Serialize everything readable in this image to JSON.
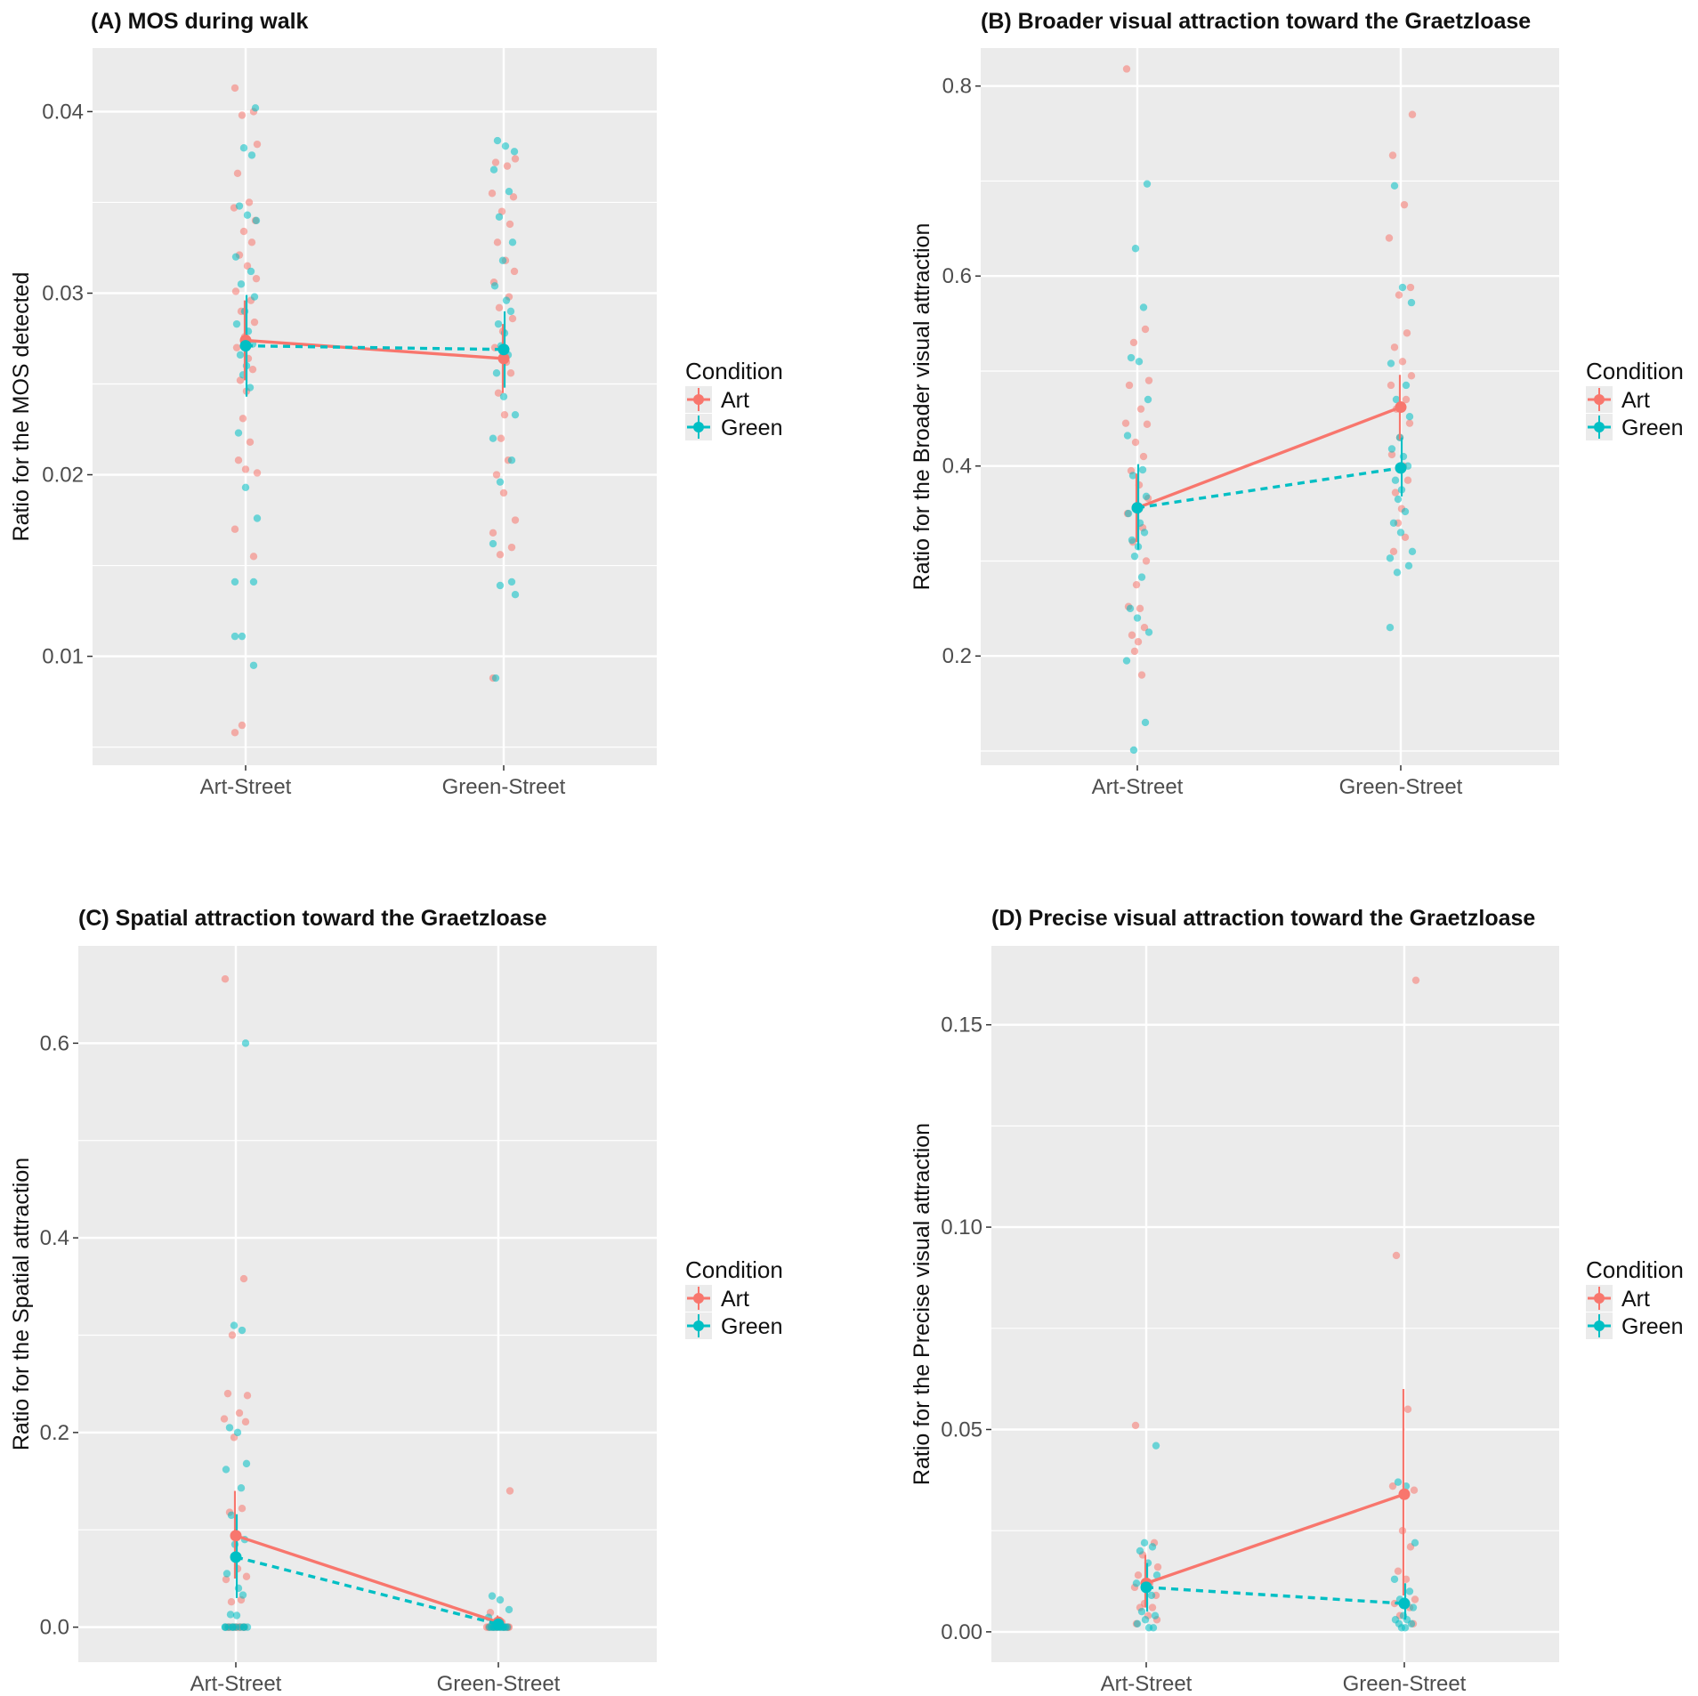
{
  "chart_data": [
    {
      "type": "scatter",
      "title": "(A) MOS during walk",
      "xlabel": "",
      "ylabel": "Ratio for the MOS detected",
      "categories": [
        "Art-Street",
        "Green-Street"
      ],
      "yticks": [
        "0.01",
        "0.02",
        "0.03",
        "0.04"
      ],
      "ylim": [
        0.004,
        0.0435
      ],
      "legend_title": "Condition",
      "series": [
        {
          "name": "Art",
          "color": "#F8766D",
          "line": "solid",
          "means": [
            0.0274,
            0.0264
          ],
          "error": [
            [
              0.0252,
              0.0296
            ],
            [
              0.0245,
              0.0283
            ]
          ],
          "points": [
            [
              0.0413,
              0.04,
              0.0398,
              0.0382,
              0.0366,
              0.035,
              0.0347,
              0.034,
              0.0334,
              0.0328,
              0.0321,
              0.0315,
              0.0308,
              0.0301,
              0.0296,
              0.029,
              0.0284,
              0.0276,
              0.027,
              0.0264,
              0.0258,
              0.0252,
              0.0246,
              0.0231,
              0.0218,
              0.0208,
              0.0203,
              0.0201,
              0.017,
              0.0155,
              0.0062,
              0.0058
            ],
            [
              0.0374,
              0.0372,
              0.037,
              0.0355,
              0.0353,
              0.0345,
              0.0338,
              0.0328,
              0.0318,
              0.0312,
              0.0306,
              0.0298,
              0.0292,
              0.0286,
              0.0279,
              0.027,
              0.0262,
              0.0256,
              0.0245,
              0.0233,
              0.022,
              0.0208,
              0.02,
              0.019,
              0.0175,
              0.0168,
              0.016,
              0.0156,
              0.0088
            ]
          ]
        },
        {
          "name": "Green",
          "color": "#00BFC4",
          "line": "dashed",
          "means": [
            0.0271,
            0.0269
          ],
          "error": [
            [
              0.0243,
              0.0299
            ],
            [
              0.0248,
              0.029
            ]
          ],
          "points": [
            [
              0.0402,
              0.038,
              0.0376,
              0.0348,
              0.0343,
              0.034,
              0.032,
              0.0312,
              0.0305,
              0.0298,
              0.029,
              0.0283,
              0.0279,
              0.0272,
              0.0266,
              0.026,
              0.0255,
              0.0248,
              0.0223,
              0.0193,
              0.0176,
              0.0141,
              0.0141,
              0.0111,
              0.0111,
              0.0095
            ],
            [
              0.0384,
              0.0381,
              0.0378,
              0.0368,
              0.0356,
              0.0342,
              0.0328,
              0.0318,
              0.0304,
              0.0296,
              0.029,
              0.0283,
              0.0278,
              0.0271,
              0.0266,
              0.0256,
              0.0243,
              0.0233,
              0.022,
              0.0208,
              0.0196,
              0.0162,
              0.0141,
              0.0139,
              0.0134,
              0.0088
            ]
          ]
        }
      ]
    },
    {
      "type": "scatter",
      "title": "(B) Broader visual attraction toward the Graetzloase",
      "xlabel": "",
      "ylabel": "Ratio for the Broader visual attraction",
      "categories": [
        "Art-Street",
        "Green-Street"
      ],
      "yticks": [
        "0.2",
        "0.4",
        "0.6",
        "0.8"
      ],
      "ylim": [
        0.085,
        0.84
      ],
      "legend_title": "Condition",
      "series": [
        {
          "name": "Art",
          "color": "#F8766D",
          "line": "solid",
          "means": [
            0.356,
            0.462
          ],
          "error": [
            [
              0.32,
              0.392
            ],
            [
              0.428,
              0.496
            ]
          ],
          "points": [
            [
              0.818,
              0.544,
              0.53,
              0.49,
              0.485,
              0.46,
              0.445,
              0.444,
              0.425,
              0.41,
              0.395,
              0.38,
              0.366,
              0.35,
              0.335,
              0.32,
              0.3,
              0.275,
              0.252,
              0.25,
              0.23,
              0.222,
              0.215,
              0.205,
              0.18
            ],
            [
              0.77,
              0.727,
              0.675,
              0.64,
              0.588,
              0.58,
              0.54,
              0.525,
              0.51,
              0.495,
              0.485,
              0.47,
              0.46,
              0.445,
              0.43,
              0.412,
              0.4,
              0.385,
              0.372,
              0.355,
              0.34,
              0.325,
              0.31
            ]
          ]
        },
        {
          "name": "Green",
          "color": "#00BFC4",
          "line": "dashed",
          "means": [
            0.356,
            0.398
          ],
          "error": [
            [
              0.312,
              0.402
            ],
            [
              0.368,
              0.43
            ]
          ],
          "points": [
            [
              0.697,
              0.629,
              0.567,
              0.514,
              0.51,
              0.47,
              0.432,
              0.396,
              0.39,
              0.368,
              0.358,
              0.35,
              0.34,
              0.33,
              0.322,
              0.315,
              0.305,
              0.283,
              0.25,
              0.24,
              0.225,
              0.195,
              0.13,
              0.101
            ],
            [
              0.695,
              0.588,
              0.572,
              0.508,
              0.485,
              0.47,
              0.452,
              0.43,
              0.418,
              0.41,
              0.4,
              0.385,
              0.375,
              0.365,
              0.352,
              0.34,
              0.33,
              0.31,
              0.303,
              0.295,
              0.288,
              0.23
            ]
          ]
        }
      ]
    },
    {
      "type": "scatter",
      "title": "(C) Spatial attraction toward the Graetzloase",
      "xlabel": "",
      "ylabel": "Ratio for the Spatial attraction",
      "categories": [
        "Art-Street",
        "Green-Street"
      ],
      "yticks": [
        "0.0",
        "0.2",
        "0.4",
        "0.6"
      ],
      "ylim": [
        -0.036,
        0.7
      ],
      "legend_title": "Condition",
      "series": [
        {
          "name": "Art",
          "color": "#F8766D",
          "line": "solid",
          "means": [
            0.094,
            0.005
          ],
          "error": [
            [
              0.05,
              0.14
            ],
            [
              0.0,
              0.012
            ]
          ],
          "points": [
            [
              0.666,
              0.358,
              0.3,
              0.238,
              0.24,
              0.22,
              0.214,
              0.211,
              0.195,
              0.122,
              0.118,
              0.06,
              0.052,
              0.049,
              0.028,
              0.026,
              0.0,
              0.0,
              0.0,
              0.0,
              0.0,
              0.0,
              0.0,
              0.0,
              0.0,
              0.0
            ],
            [
              0.14,
              0.015,
              0.005,
              0.0,
              0.0,
              0.0,
              0.0,
              0.0,
              0.0,
              0.0,
              0.0,
              0.0,
              0.0,
              0.0,
              0.0,
              0.0
            ]
          ]
        },
        {
          "name": "Green",
          "color": "#00BFC4",
          "line": "dashed",
          "means": [
            0.072,
            0.003
          ],
          "error": [
            [
              0.03,
              0.116
            ],
            [
              0.0,
              0.01
            ]
          ],
          "points": [
            [
              0.6,
              0.31,
              0.305,
              0.205,
              0.2,
              0.168,
              0.162,
              0.143,
              0.115,
              0.09,
              0.085,
              0.055,
              0.04,
              0.033,
              0.013,
              0.012,
              0.0,
              0.0,
              0.0,
              0.0,
              0.0,
              0.0,
              0.0,
              0.0,
              0.0,
              0.0
            ],
            [
              0.032,
              0.028,
              0.018,
              0.01,
              0.0,
              0.0,
              0.0,
              0.0,
              0.0,
              0.0,
              0.0,
              0.0,
              0.0,
              0.0,
              0.0,
              0.0
            ]
          ]
        }
      ]
    },
    {
      "type": "scatter",
      "title": "(D) Precise visual attraction toward the Graetzloase",
      "xlabel": "",
      "ylabel": "Ratio for the Precise visual attraction",
      "categories": [
        "Art-Street",
        "Green-Street"
      ],
      "yticks": [
        "0.00",
        "0.05",
        "0.10",
        "0.15"
      ],
      "ylim": [
        -0.0075,
        0.1695
      ],
      "legend_title": "Condition",
      "series": [
        {
          "name": "Art",
          "color": "#F8766D",
          "line": "solid",
          "means": [
            0.012,
            0.034
          ],
          "error": [
            [
              0.006,
              0.019
            ],
            [
              0.009,
              0.06
            ]
          ],
          "points": [
            [
              0.051,
              0.022,
              0.019,
              0.016,
              0.014,
              0.012,
              0.011,
              0.009,
              0.007,
              0.006,
              0.006,
              0.004,
              0.003,
              0.002
            ],
            [
              0.161,
              0.093,
              0.055,
              0.036,
              0.035,
              0.025,
              0.021,
              0.015,
              0.013,
              0.008,
              0.007,
              0.006,
              0.004,
              0.002
            ]
          ]
        },
        {
          "name": "Green",
          "color": "#00BFC4",
          "line": "dashed",
          "means": [
            0.011,
            0.007
          ],
          "error": [
            [
              0.005,
              0.017
            ],
            [
              0.003,
              0.012
            ]
          ],
          "points": [
            [
              0.046,
              0.022,
              0.021,
              0.02,
              0.017,
              0.014,
              0.012,
              0.009,
              0.005,
              0.004,
              0.003,
              0.002,
              0.001,
              0.001
            ],
            [
              0.037,
              0.036,
              0.022,
              0.013,
              0.01,
              0.008,
              0.006,
              0.004,
              0.003,
              0.003,
              0.002,
              0.002,
              0.001,
              0.001
            ]
          ]
        }
      ]
    }
  ]
}
